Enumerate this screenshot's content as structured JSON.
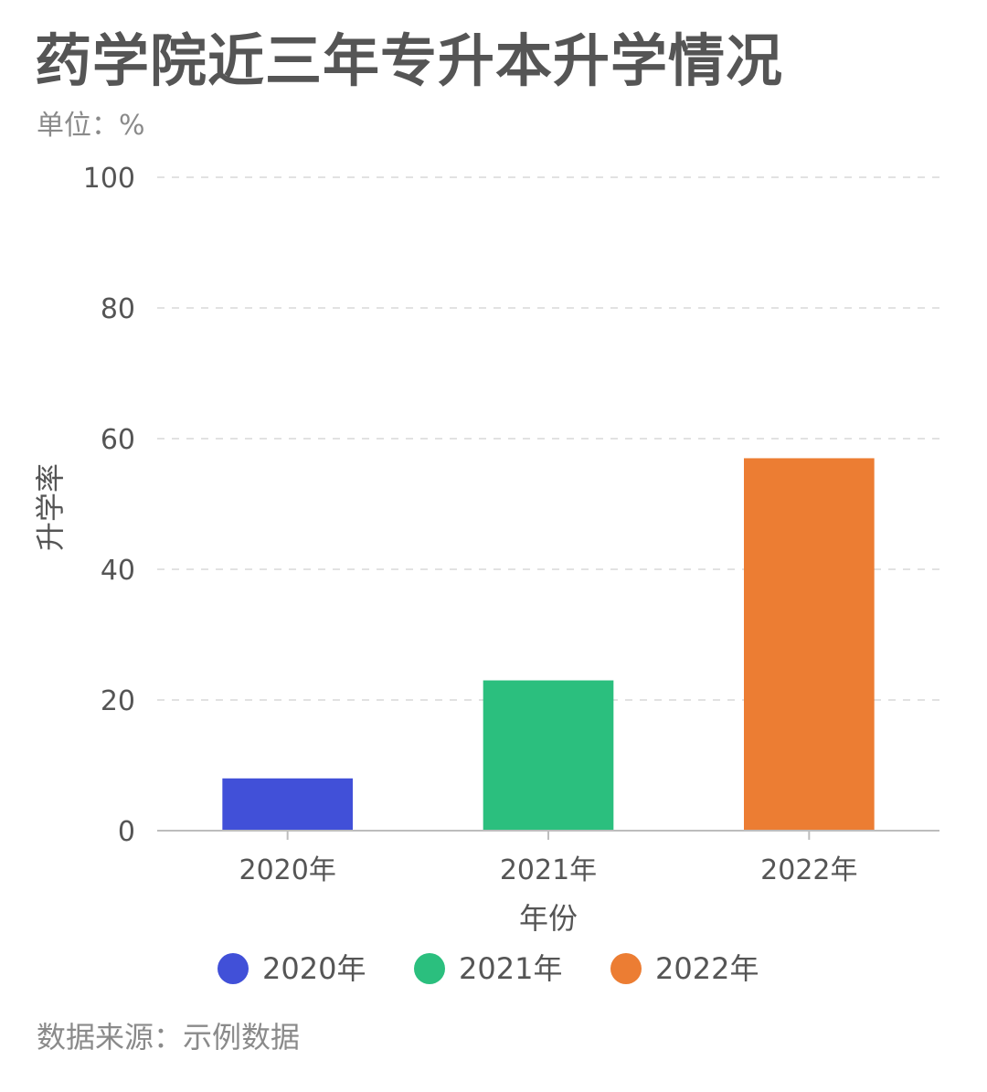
{
  "header": {
    "title": "药学院近三年专升本升学情况",
    "unit": "单位：%"
  },
  "footer": {
    "source": "数据来源：示例数据"
  },
  "chart_data": {
    "type": "bar",
    "categories": [
      "2020年",
      "2021年",
      "2022年"
    ],
    "values": [
      8,
      23,
      57
    ],
    "colors": [
      "#4150d8",
      "#2bbf7e",
      "#ec7d33"
    ],
    "xlabel": "年份",
    "ylabel": "升学率",
    "ylim": [
      0,
      100
    ],
    "yticks": [
      0,
      20,
      40,
      60,
      80,
      100
    ],
    "grid": true,
    "legend": {
      "placement": "bottom",
      "entries": [
        "2020年",
        "2021年",
        "2022年"
      ]
    }
  }
}
